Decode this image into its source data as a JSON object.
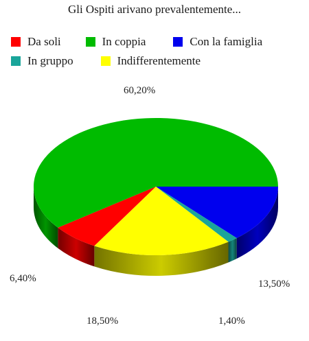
{
  "chart_data": {
    "type": "pie",
    "title": "Gli Ospiti arivano prevalentemente...",
    "legend_position": "top",
    "categories": [
      "Da soli",
      "In coppia",
      "Con la famiglia",
      "In gruppo",
      "Indifferentemente"
    ],
    "values": [
      6.4,
      60.2,
      13.5,
      1.4,
      18.5
    ],
    "value_labels": [
      "6,40%",
      "60,20%",
      "13,50%",
      "1,40%",
      "18,50%"
    ],
    "colors": [
      "#ff0000",
      "#00bb00",
      "#0000ee",
      "#1aa59a",
      "#ffff00"
    ],
    "style": "3d-pie"
  }
}
